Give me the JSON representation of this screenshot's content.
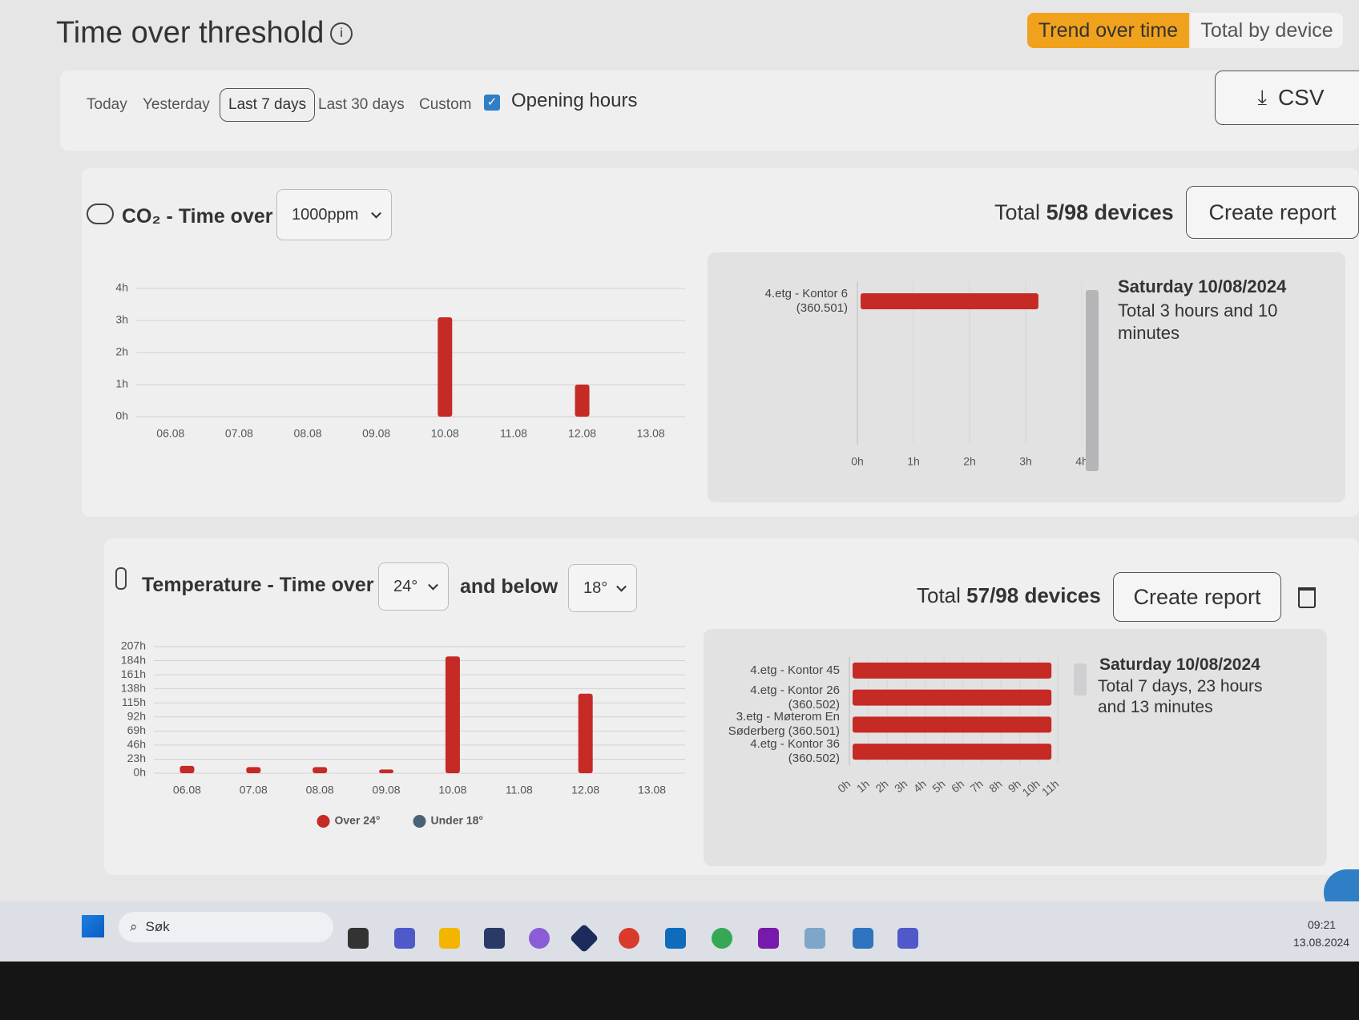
{
  "header": {
    "title": "Time over threshold",
    "tabs": [
      "Trend over time",
      "Total by device"
    ]
  },
  "filters": {
    "ranges": [
      "Today",
      "Yesterday",
      "Last 7 days",
      "Last 30 days",
      "Custom"
    ],
    "opening_hours": "Opening hours",
    "csv": "CSV"
  },
  "co2": {
    "title": "CO₂ - Time over",
    "threshold": "1000ppm",
    "total_label": "Total",
    "total_value": "5/98 devices",
    "create_report": "Create report",
    "tooltip": {
      "date": "Saturday 10/08/2024",
      "text": "Total 3 hours and 10 minutes"
    }
  },
  "temperature": {
    "title": "Temperature - Time over",
    "upper": "24°",
    "and_below": "and below",
    "lower": "18°",
    "total_label": "Total",
    "total_value": "57/98 devices",
    "create_report": "Create report",
    "tooltip": {
      "date": "Saturday 10/08/2024",
      "text": "Total 7 days, 23 hours and 13 minutes"
    }
  },
  "chart_data": [
    {
      "type": "bar",
      "categories": [
        "06.08",
        "07.08",
        "08.08",
        "09.08",
        "10.08",
        "11.08",
        "12.08",
        "13.08"
      ],
      "series": [
        {
          "name": "CO₂",
          "color": "#c62a24",
          "values": [
            0,
            0,
            0,
            0,
            3.1,
            0,
            1.0,
            0
          ]
        }
      ],
      "ylim": [
        0,
        4
      ],
      "yticks": [
        {
          "value": 0,
          "label": "0h"
        },
        {
          "value": 1,
          "label": "1h"
        },
        {
          "value": 2,
          "label": "2h"
        },
        {
          "value": 3,
          "label": "3h"
        },
        {
          "value": 4,
          "label": "4h"
        }
      ],
      "grid": true,
      "legend": false
    },
    {
      "type": "hbar",
      "categories": [
        "4.etg - Kontor 6 (360.501)"
      ],
      "series": [
        {
          "name": "CO₂",
          "color": "#c62a24",
          "values": [
            3.17
          ]
        }
      ],
      "xlim": [
        0,
        4
      ],
      "xticks": [
        {
          "value": 0,
          "label": "0h"
        },
        {
          "value": 1,
          "label": "1h"
        },
        {
          "value": 2,
          "label": "2h"
        },
        {
          "value": 3,
          "label": "3h"
        },
        {
          "value": 4,
          "label": "4h"
        }
      ],
      "grid": true,
      "legend": false
    },
    {
      "type": "bar",
      "categories": [
        "06.08",
        "07.08",
        "08.08",
        "09.08",
        "10.08",
        "11.08",
        "12.08",
        "13.08"
      ],
      "series": [
        {
          "name": "Over 24°",
          "color": "#c62a24",
          "values": [
            12,
            10,
            10,
            6,
            191,
            0,
            130,
            0
          ]
        },
        {
          "name": "Under 18°",
          "color": "#4b6275",
          "values": [
            0,
            0,
            0,
            0,
            0,
            0,
            0,
            0
          ]
        }
      ],
      "ylim": [
        0,
        207
      ],
      "yticks": [
        {
          "value": 0,
          "label": "0h"
        },
        {
          "value": 23,
          "label": "23h"
        },
        {
          "value": 46,
          "label": "46h"
        },
        {
          "value": 69,
          "label": "69h"
        },
        {
          "value": 92,
          "label": "92h"
        },
        {
          "value": 115,
          "label": "115h"
        },
        {
          "value": 138,
          "label": "138h"
        },
        {
          "value": 161,
          "label": "161h"
        },
        {
          "value": 184,
          "label": "184h"
        },
        {
          "value": 207,
          "label": "207h"
        }
      ],
      "grid": true,
      "legend": "bottom"
    },
    {
      "type": "hbar",
      "categories": [
        "4.etg - Kontor 45",
        "4.etg - Kontor 26 (360.502)",
        "3.etg - Møterom En Søderberg (360.501)",
        "4.etg - Kontor 36 (360.502)"
      ],
      "series": [
        {
          "name": "Over 24°",
          "color": "#c62a24",
          "values": [
            10.5,
            10.5,
            10.5,
            10.5
          ]
        }
      ],
      "xlim": [
        0,
        11
      ],
      "xticks": [
        {
          "value": 0,
          "label": "0h"
        },
        {
          "value": 1,
          "label": "1h"
        },
        {
          "value": 2,
          "label": "2h"
        },
        {
          "value": 3,
          "label": "3h"
        },
        {
          "value": 4,
          "label": "4h"
        },
        {
          "value": 5,
          "label": "5h"
        },
        {
          "value": 6,
          "label": "6h"
        },
        {
          "value": 7,
          "label": "7h"
        },
        {
          "value": 8,
          "label": "8h"
        },
        {
          "value": 9,
          "label": "9h"
        },
        {
          "value": 10,
          "label": "10h"
        },
        {
          "value": 11,
          "label": "11h"
        }
      ],
      "grid": true,
      "legend": false
    }
  ],
  "taskbar": {
    "search": "Søk",
    "time": "09:21",
    "date": "13.08.2024"
  }
}
